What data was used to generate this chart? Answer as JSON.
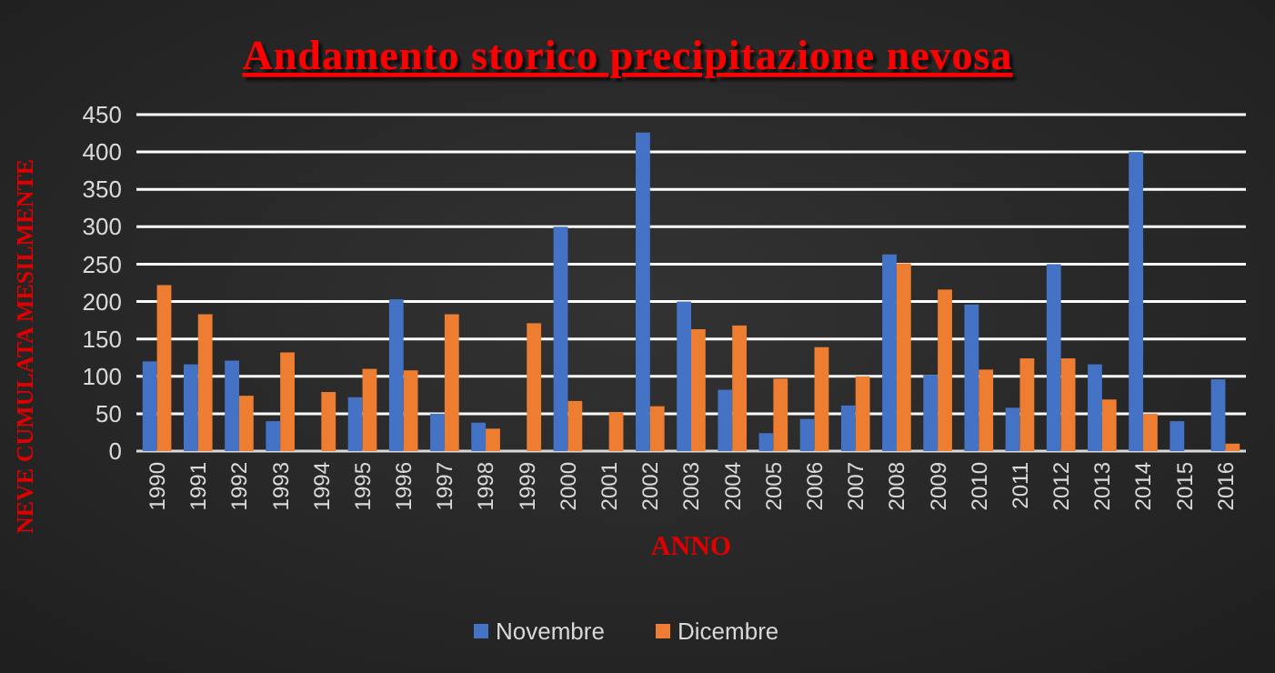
{
  "chart_data": {
    "type": "bar",
    "title": "Andamento storico precipitazione nevosa",
    "xlabel": "ANNO",
    "ylabel": "NEVE CUMULATA MESILMENTE",
    "categories": [
      "1990",
      "1991",
      "1992",
      "1993",
      "1994",
      "1995",
      "1996",
      "1997",
      "1998",
      "1999",
      "2000",
      "2001",
      "2002",
      "2003",
      "2004",
      "2005",
      "2006",
      "2007",
      "2008",
      "2009",
      "2010",
      "2011",
      "2012",
      "2013",
      "2014",
      "2015",
      "2016"
    ],
    "series": [
      {
        "name": "Novembre",
        "color": "#4472c4",
        "values": [
          120,
          116,
          121,
          40,
          0,
          72,
          203,
          50,
          38,
          0,
          300,
          0,
          426,
          200,
          82,
          24,
          43,
          61,
          263,
          102,
          196,
          58,
          250,
          116,
          400,
          40,
          96
        ]
      },
      {
        "name": "Dicembre",
        "color": "#ed7d31",
        "values": [
          222,
          183,
          74,
          132,
          79,
          110,
          108,
          183,
          30,
          171,
          67,
          52,
          60,
          163,
          168,
          97,
          139,
          100,
          251,
          216,
          109,
          124,
          124,
          69,
          50,
          0,
          10
        ]
      }
    ],
    "ylim": [
      0,
      450
    ],
    "yticks": [
      0,
      50,
      100,
      150,
      200,
      250,
      300,
      350,
      400,
      450
    ],
    "grid": "y",
    "legend": "bottom"
  }
}
